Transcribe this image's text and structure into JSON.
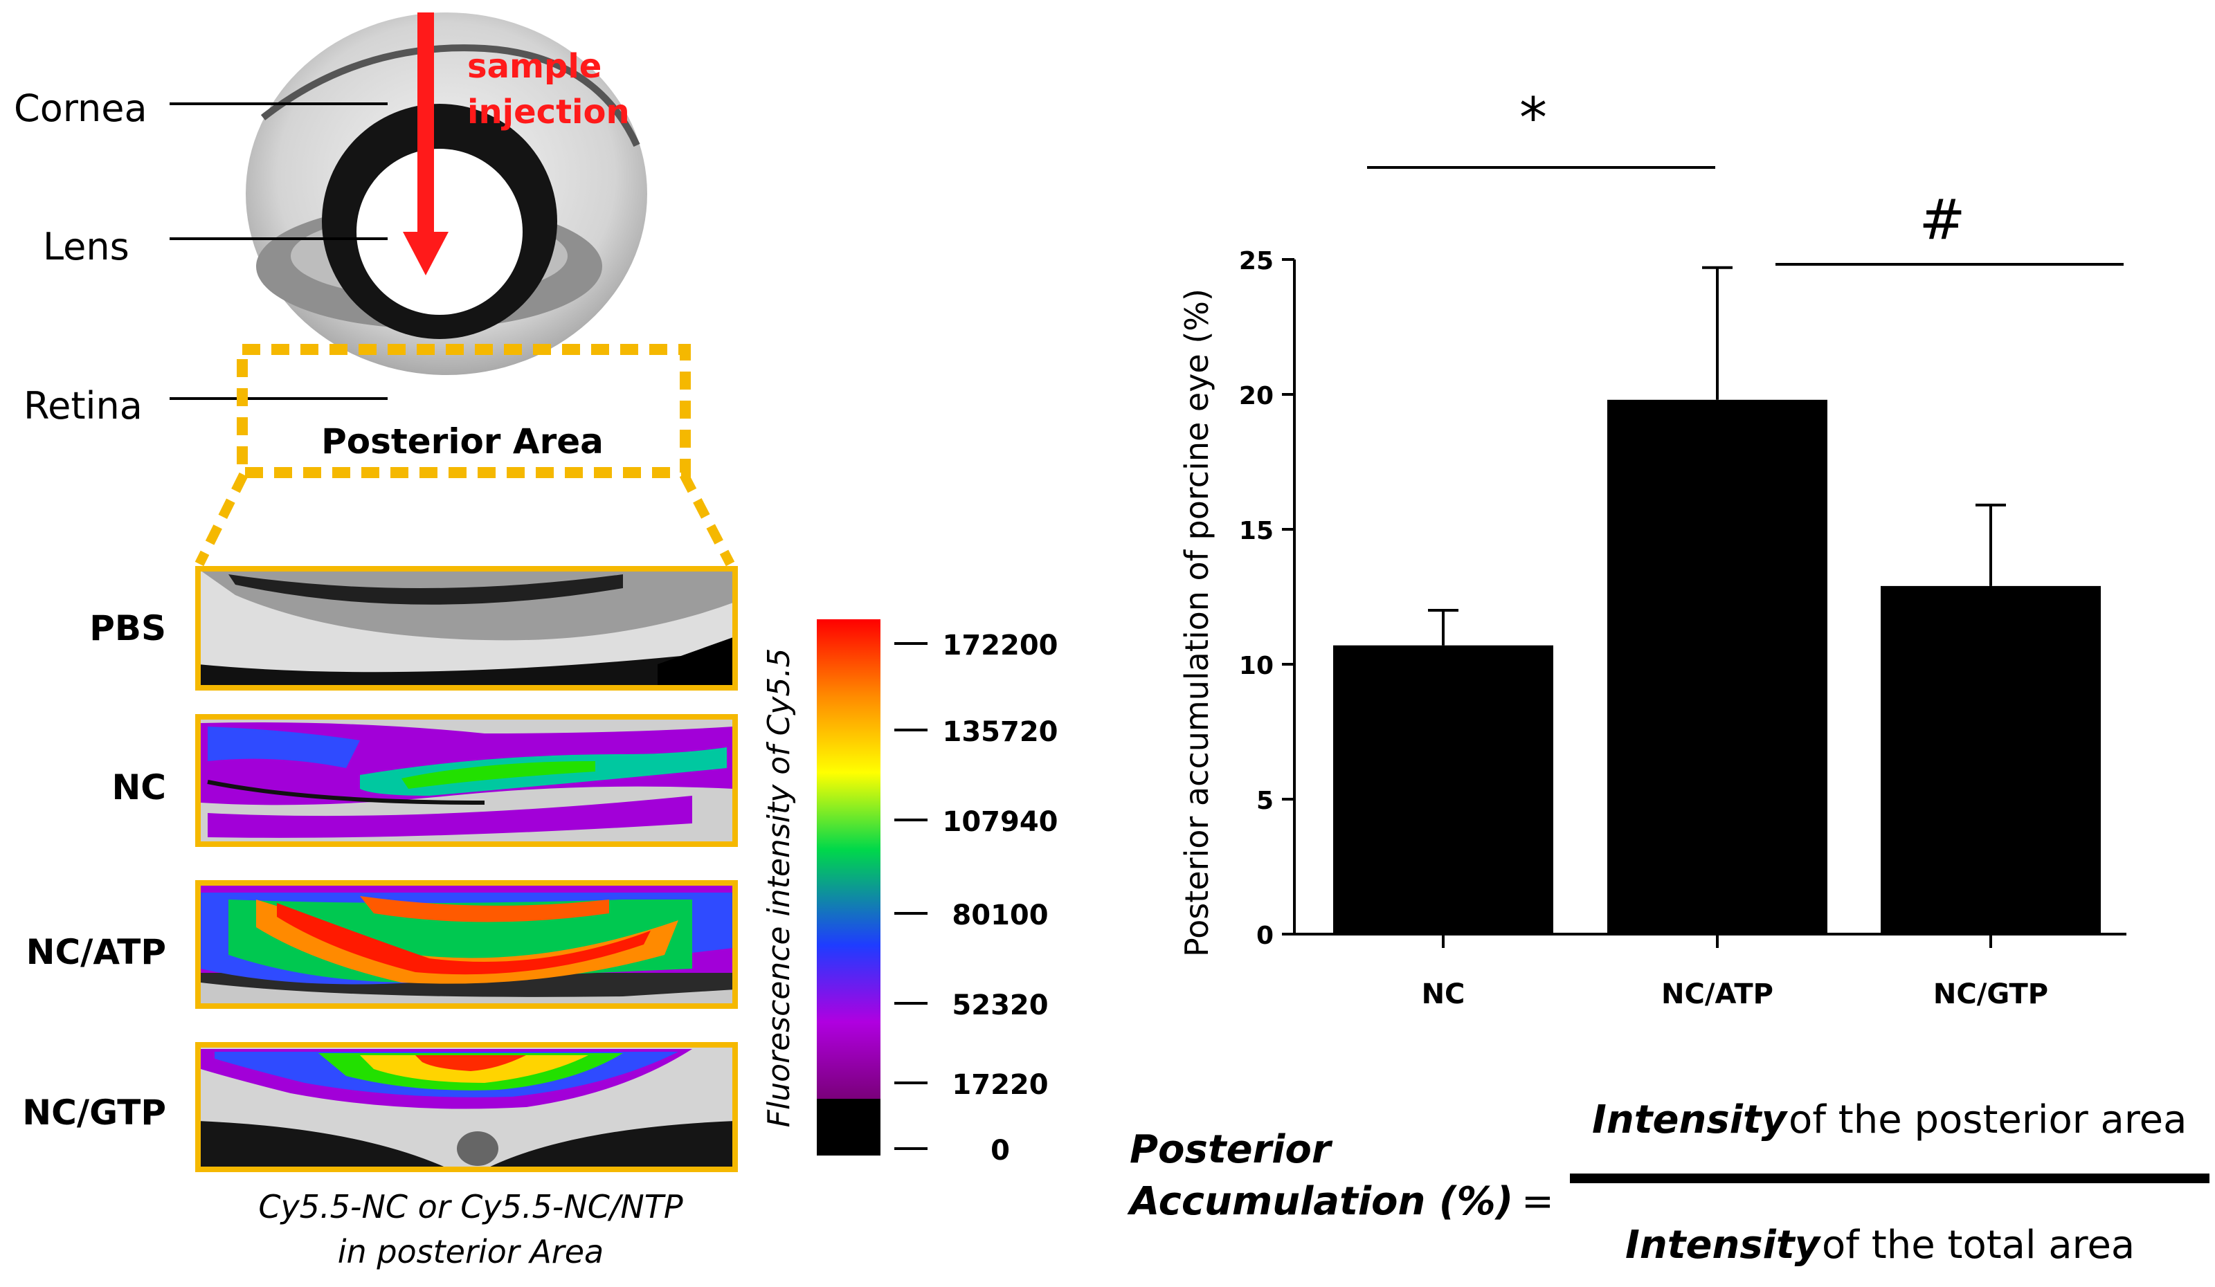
{
  "eye_diagram": {
    "labels": {
      "cornea": "Cornea",
      "lens": "Lens",
      "retina": "Retina"
    },
    "injection": {
      "line1": "sample",
      "line2": "injection",
      "color": "#ff1a1a"
    },
    "region_label": "Posterior Area",
    "highlight_color": "#f5b800"
  },
  "panels": {
    "rows": [
      {
        "label": "PBS",
        "style": "grayscale"
      },
      {
        "label": "NC",
        "style": "fluor-low"
      },
      {
        "label": "NC/ATP",
        "style": "fluor-high"
      },
      {
        "label": "NC/GTP",
        "style": "fluor-mid"
      }
    ],
    "caption_line1": "Cy5.5-NC or Cy5.5-NC/NTP",
    "caption_line2": "in posterior Area"
  },
  "colorbar": {
    "title": "Fluorescence intensity of Cy5.5",
    "ticks": [
      "172200",
      "135720",
      "107940",
      "80100",
      "52320",
      "17220",
      "0"
    ]
  },
  "chart_data": {
    "type": "bar",
    "categories": [
      "NC",
      "NC/ATP",
      "NC/GTP"
    ],
    "values": [
      10.7,
      19.8,
      12.9
    ],
    "errors": [
      1.3,
      4.9,
      3.0
    ],
    "ylabel": "Posterior accumulation of porcine eye (%)",
    "xlabel": "",
    "ylim": [
      0,
      25
    ],
    "yticks": [
      0,
      5,
      10,
      15,
      20,
      25
    ],
    "bar_color": "#000000",
    "significance": [
      {
        "symbol": "*",
        "from": "NC",
        "to": "NC/ATP"
      },
      {
        "symbol": "#",
        "from": "NC/ATP",
        "to": "NC/GTP"
      }
    ]
  },
  "formula": {
    "lhs_line1": "Posterior",
    "lhs_line2": "Accumulation (%)",
    "equals": "=",
    "numerator_bold": "Intensity",
    "numerator_rest": "of the posterior area",
    "denominator_bold": "Intensity",
    "denominator_rest": "of the total area"
  }
}
